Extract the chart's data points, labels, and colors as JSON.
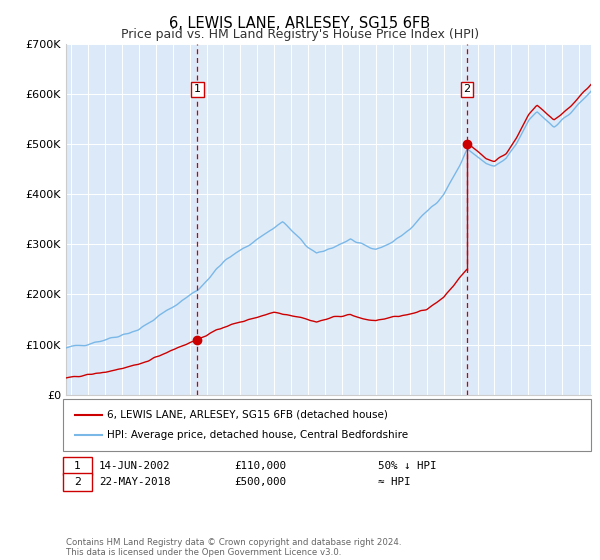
{
  "title": "6, LEWIS LANE, ARLESEY, SG15 6FB",
  "subtitle": "Price paid vs. HM Land Registry's House Price Index (HPI)",
  "ylim": [
    0,
    700000
  ],
  "yticks": [
    0,
    100000,
    200000,
    300000,
    400000,
    500000,
    600000,
    700000
  ],
  "ytick_labels": [
    "£0",
    "£100K",
    "£200K",
    "£300K",
    "£400K",
    "£500K",
    "£600K",
    "£700K"
  ],
  "xlim_start": 1994.7,
  "xlim_end": 2025.7,
  "xticks": [
    1995,
    1996,
    1997,
    1998,
    1999,
    2000,
    2001,
    2002,
    2003,
    2004,
    2005,
    2006,
    2007,
    2008,
    2009,
    2010,
    2011,
    2012,
    2013,
    2014,
    2015,
    2016,
    2017,
    2018,
    2019,
    2020,
    2021,
    2022,
    2023,
    2024,
    2025
  ],
  "plot_bg": "#dce9f8",
  "outer_bg": "#ffffff",
  "hpi_color": "#7ab8e8",
  "price_color": "#cc0000",
  "vline_color": "#cc0000",
  "transaction1_x": 2002.45,
  "transaction1_y": 110000,
  "transaction2_x": 2018.38,
  "transaction2_y": 500000,
  "legend_label1": "6, LEWIS LANE, ARLESEY, SG15 6FB (detached house)",
  "legend_label2": "HPI: Average price, detached house, Central Bedfordshire",
  "note1_num": "1",
  "note1_date": "14-JUN-2002",
  "note1_price": "£110,000",
  "note1_hpi": "50% ↓ HPI",
  "note2_num": "2",
  "note2_date": "22-MAY-2018",
  "note2_price": "£500,000",
  "note2_hpi": "≈ HPI",
  "footer": "Contains HM Land Registry data © Crown copyright and database right 2024.\nThis data is licensed under the Open Government Licence v3.0."
}
